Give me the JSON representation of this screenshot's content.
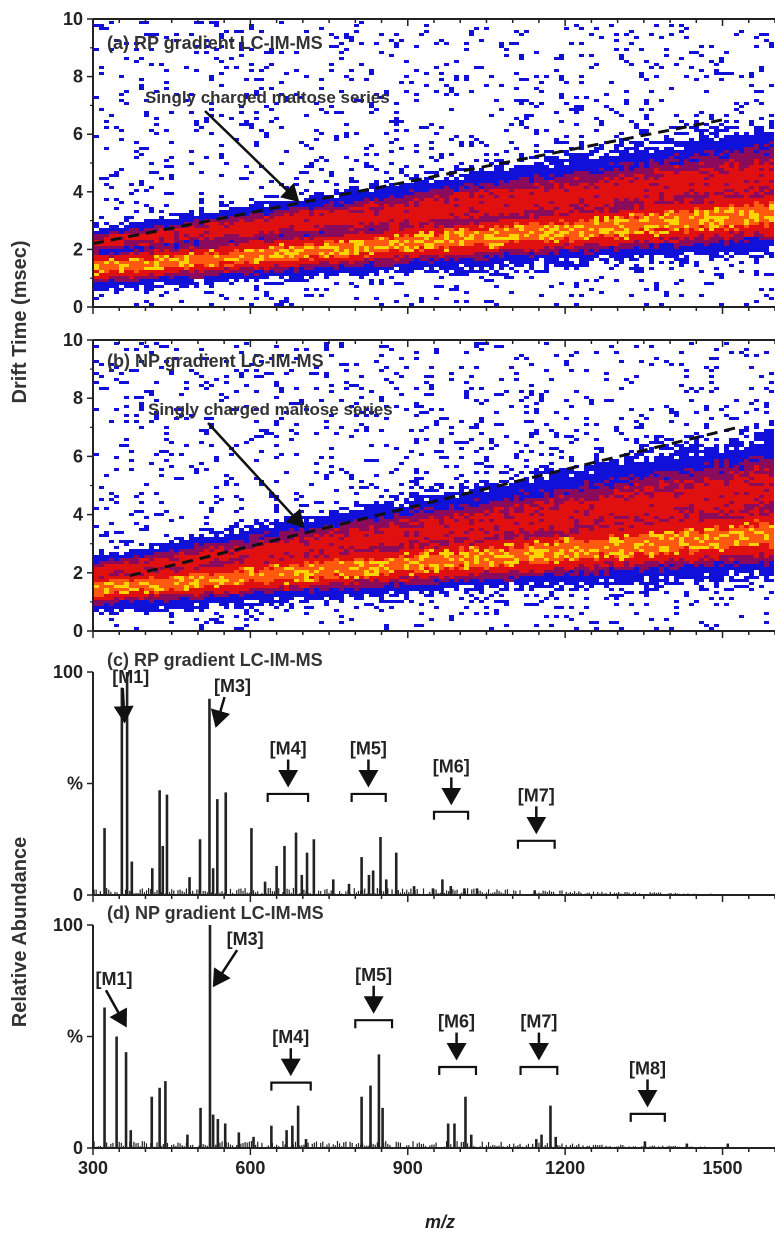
{
  "figure": {
    "shared_ylabel_top": "Drift Time (msec)",
    "shared_ylabel_bottom": "Relative Abundance",
    "xlabel": "m/z",
    "x_ticks": [
      "300",
      "600",
      "900",
      "1200",
      "1500"
    ]
  },
  "colors": {
    "low": "#1010d8",
    "mid": "#8a0b5b",
    "high": "#e11010",
    "peak": "#ffd400",
    "spectrum": "#222222"
  },
  "chart_data": [
    {
      "type": "heatmap",
      "panel_label": "(a) RP gradient LC-IM-MS",
      "annotation": "Singly charged maltose series",
      "xlim": [
        300,
        1600
      ],
      "ylim": [
        0,
        10
      ],
      "y_ticks": [
        "0",
        "2",
        "4",
        "6",
        "8",
        "10"
      ],
      "trend": {
        "x": [
          300,
          1500
        ],
        "y": [
          2.2,
          6.5
        ]
      },
      "annotation_points_to": {
        "x": 690,
        "y": 3.7
      },
      "bands": [
        {
          "name": "main",
          "x0": 300,
          "y0": 1.4,
          "x1": 1600,
          "y1": 3.3,
          "halfwidth0": 0.5,
          "halfwidth1": 0.9
        },
        {
          "name": "upper",
          "x0": 300,
          "y0": 2.3,
          "x1": 1600,
          "y1": 4.6,
          "halfwidth0": 0.35,
          "halfwidth1": 1.3
        }
      ]
    },
    {
      "type": "heatmap",
      "panel_label": "(b) NP gradient LC-IM-MS",
      "annotation": "Singly charged maltose series",
      "xlim": [
        300,
        1600
      ],
      "ylim": [
        0,
        10
      ],
      "y_ticks": [
        "0",
        "2",
        "4",
        "6",
        "8",
        "10"
      ],
      "trend": {
        "x": [
          370,
          1530
        ],
        "y": [
          1.9,
          7.0
        ]
      },
      "annotation_points_to": {
        "x": 700,
        "y": 3.6
      },
      "bands": [
        {
          "name": "main",
          "x0": 300,
          "y0": 1.5,
          "x1": 1600,
          "y1": 3.4,
          "halfwidth0": 0.55,
          "halfwidth1": 0.95
        },
        {
          "name": "upper",
          "x0": 300,
          "y0": 2.1,
          "x1": 1600,
          "y1": 4.9,
          "halfwidth0": 0.4,
          "halfwidth1": 1.5
        }
      ]
    },
    {
      "type": "bar",
      "panel_label": "(c) RP gradient LC-IM-MS",
      "xlim": [
        300,
        1600
      ],
      "ylim": [
        0,
        100
      ],
      "y_ticks": [
        "0",
        "%",
        "100"
      ],
      "peaks": [
        {
          "x": 322,
          "y": 30
        },
        {
          "x": 355,
          "y": 93
        },
        {
          "x": 365,
          "y": 100
        },
        {
          "x": 374,
          "y": 15
        },
        {
          "x": 413,
          "y": 12
        },
        {
          "x": 427,
          "y": 47
        },
        {
          "x": 433,
          "y": 22
        },
        {
          "x": 441,
          "y": 45
        },
        {
          "x": 484,
          "y": 8
        },
        {
          "x": 504,
          "y": 25
        },
        {
          "x": 522,
          "y": 88
        },
        {
          "x": 529,
          "y": 12
        },
        {
          "x": 537,
          "y": 43
        },
        {
          "x": 553,
          "y": 46
        },
        {
          "x": 602,
          "y": 30
        },
        {
          "x": 628,
          "y": 6
        },
        {
          "x": 650,
          "y": 13
        },
        {
          "x": 665,
          "y": 22
        },
        {
          "x": 687,
          "y": 28
        },
        {
          "x": 698,
          "y": 9
        },
        {
          "x": 708,
          "y": 19
        },
        {
          "x": 721,
          "y": 25
        },
        {
          "x": 758,
          "y": 7
        },
        {
          "x": 788,
          "y": 5
        },
        {
          "x": 812,
          "y": 17
        },
        {
          "x": 826,
          "y": 9
        },
        {
          "x": 834,
          "y": 11
        },
        {
          "x": 848,
          "y": 26
        },
        {
          "x": 859,
          "y": 7
        },
        {
          "x": 878,
          "y": 19
        },
        {
          "x": 912,
          "y": 4
        },
        {
          "x": 948,
          "y": 3
        },
        {
          "x": 966,
          "y": 7
        },
        {
          "x": 982,
          "y": 4
        },
        {
          "x": 1008,
          "y": 3
        },
        {
          "x": 1032,
          "y": 3
        },
        {
          "x": 1142,
          "y": 2
        }
      ],
      "annotations": [
        {
          "text": "[M1]",
          "label_x": 372,
          "label_y": 95,
          "arrow_to": {
            "x": 360,
            "y": 78
          },
          "range": null
        },
        {
          "text": "[M3]",
          "label_x": 566,
          "label_y": 91,
          "arrow_to": {
            "x": 535,
            "y": 76
          },
          "range": null
        },
        {
          "text": "[M4]",
          "label_x": 672,
          "label_y": 63,
          "arrow_to": {
            "x": 672,
            "y": 48
          },
          "range": [
            633,
            710
          ]
        },
        {
          "text": "[M5]",
          "label_x": 825,
          "label_y": 63,
          "arrow_to": {
            "x": 825,
            "y": 48
          },
          "range": [
            793,
            858
          ]
        },
        {
          "text": "[M6]",
          "label_x": 983,
          "label_y": 55,
          "arrow_to": {
            "x": 983,
            "y": 40
          },
          "range": [
            950,
            1015
          ]
        },
        {
          "text": "[M7]",
          "label_x": 1145,
          "label_y": 42,
          "arrow_to": {
            "x": 1145,
            "y": 27
          },
          "range": [
            1110,
            1180
          ]
        }
      ]
    },
    {
      "type": "bar",
      "panel_label": "(d) NP gradient LC-IM-MS",
      "xlim": [
        300,
        1600
      ],
      "ylim": [
        0,
        100
      ],
      "y_ticks": [
        "0",
        "%",
        "100"
      ],
      "peaks": [
        {
          "x": 322,
          "y": 63
        },
        {
          "x": 345,
          "y": 50
        },
        {
          "x": 363,
          "y": 43
        },
        {
          "x": 372,
          "y": 8
        },
        {
          "x": 412,
          "y": 23
        },
        {
          "x": 427,
          "y": 27
        },
        {
          "x": 438,
          "y": 30
        },
        {
          "x": 480,
          "y": 6
        },
        {
          "x": 505,
          "y": 18
        },
        {
          "x": 523,
          "y": 100
        },
        {
          "x": 529,
          "y": 15
        },
        {
          "x": 538,
          "y": 13
        },
        {
          "x": 552,
          "y": 11
        },
        {
          "x": 578,
          "y": 7
        },
        {
          "x": 606,
          "y": 5
        },
        {
          "x": 640,
          "y": 10
        },
        {
          "x": 669,
          "y": 8
        },
        {
          "x": 680,
          "y": 10
        },
        {
          "x": 691,
          "y": 19
        },
        {
          "x": 706,
          "y": 4
        },
        {
          "x": 812,
          "y": 23
        },
        {
          "x": 829,
          "y": 28
        },
        {
          "x": 845,
          "y": 42
        },
        {
          "x": 852,
          "y": 18
        },
        {
          "x": 977,
          "y": 11
        },
        {
          "x": 989,
          "y": 11
        },
        {
          "x": 1010,
          "y": 23
        },
        {
          "x": 1021,
          "y": 6
        },
        {
          "x": 1145,
          "y": 4
        },
        {
          "x": 1155,
          "y": 6
        },
        {
          "x": 1172,
          "y": 19
        },
        {
          "x": 1182,
          "y": 5
        },
        {
          "x": 1352,
          "y": 3
        },
        {
          "x": 1432,
          "y": 2
        },
        {
          "x": 1510,
          "y": 2
        }
      ],
      "annotations": [
        {
          "text": "[M1]",
          "label_x": 340,
          "label_y": 73,
          "arrow_to": {
            "x": 362,
            "y": 55
          },
          "range": null
        },
        {
          "text": "[M3]",
          "label_x": 590,
          "label_y": 91,
          "arrow_to": {
            "x": 531,
            "y": 73
          },
          "range": null
        },
        {
          "text": "[M4]",
          "label_x": 677,
          "label_y": 47,
          "arrow_to": {
            "x": 677,
            "y": 32
          },
          "range": [
            640,
            715
          ]
        },
        {
          "text": "[M5]",
          "label_x": 835,
          "label_y": 75,
          "arrow_to": {
            "x": 835,
            "y": 60
          },
          "range": [
            800,
            870
          ]
        },
        {
          "text": "[M6]",
          "label_x": 993,
          "label_y": 54,
          "arrow_to": {
            "x": 993,
            "y": 39
          },
          "range": [
            960,
            1030
          ]
        },
        {
          "text": "[M7]",
          "label_x": 1150,
          "label_y": 54,
          "arrow_to": {
            "x": 1150,
            "y": 39
          },
          "range": [
            1115,
            1185
          ]
        },
        {
          "text": "[M8]",
          "label_x": 1357,
          "label_y": 33,
          "arrow_to": {
            "x": 1357,
            "y": 18
          },
          "range": [
            1325,
            1390
          ]
        }
      ]
    }
  ]
}
